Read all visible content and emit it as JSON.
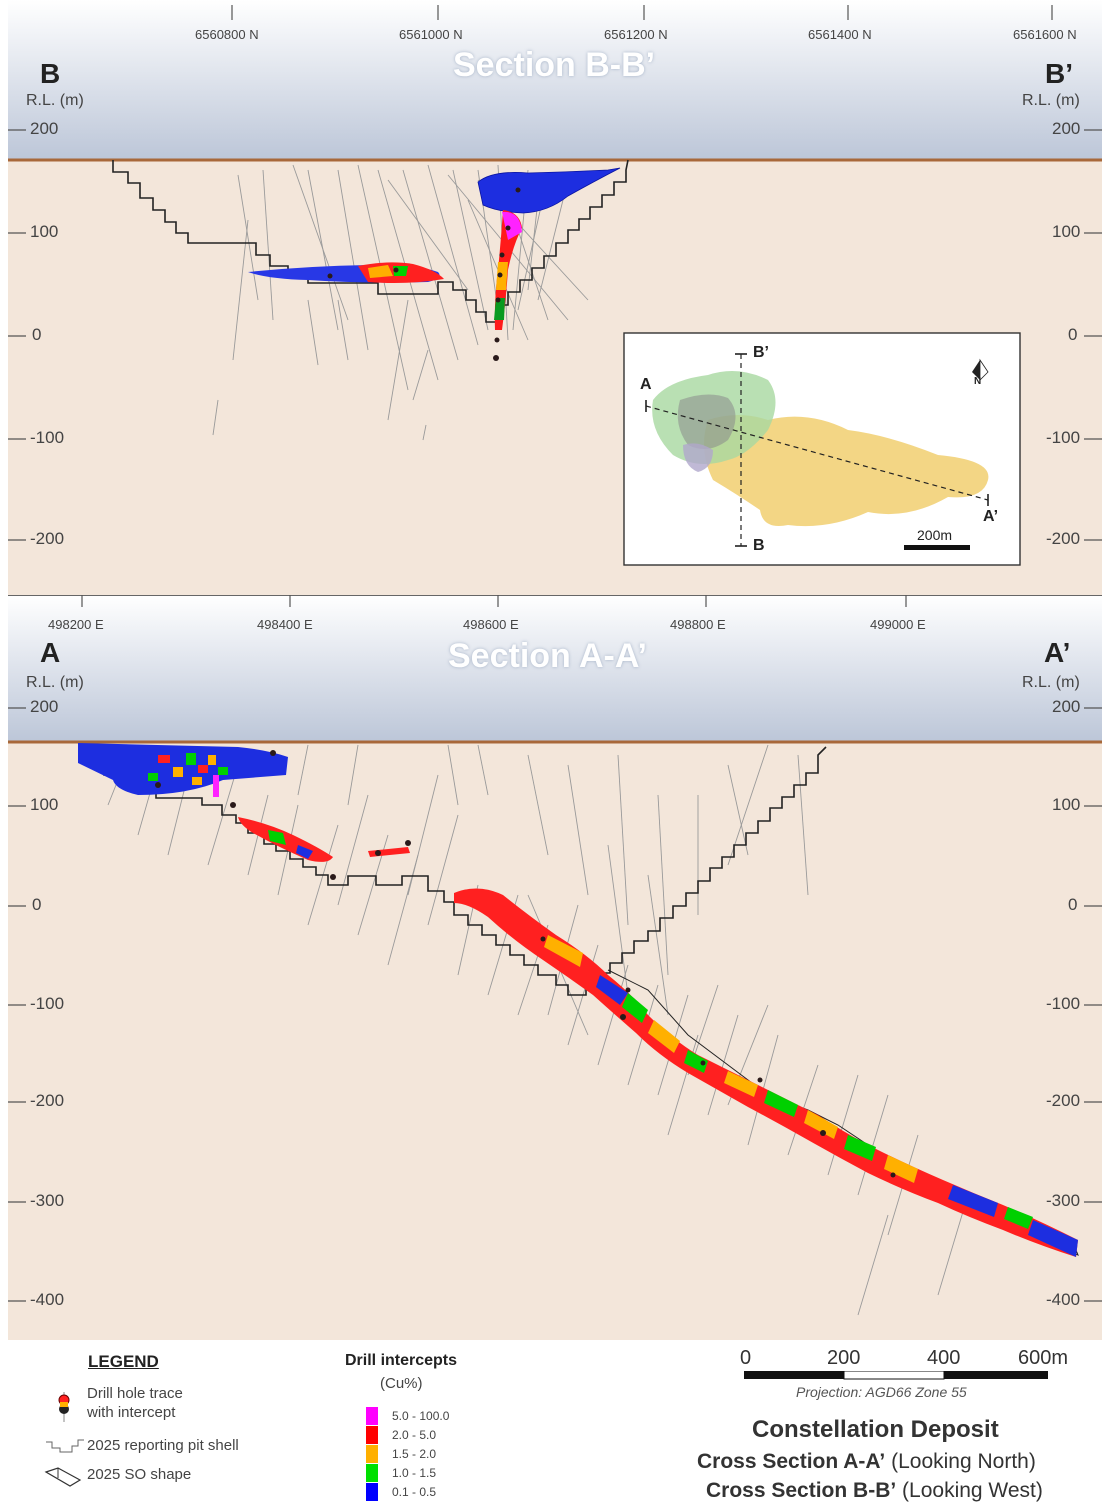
{
  "section_b": {
    "title": "Section B-B’",
    "left_letter": "B",
    "right_letter": "B’",
    "rl_label": "R.L. (m)",
    "top_ticks": [
      "6560800 N",
      "6561000 N",
      "6561200 N",
      "6561400 N",
      "6561600 N"
    ],
    "elevations": [
      "200",
      "100",
      "0",
      "-100",
      "-200"
    ]
  },
  "section_a": {
    "title": "Section A-A’",
    "left_letter": "A",
    "right_letter": "A’",
    "rl_label": "R.L. (m)",
    "top_ticks": [
      "498200 E",
      "498400 E",
      "498600 E",
      "498800 E",
      "499000 E"
    ],
    "elevations": [
      "200",
      "100",
      "0",
      "-100",
      "-200",
      "-300",
      "-400"
    ]
  },
  "inset": {
    "label_a": "A",
    "label_a_prime": "A’",
    "label_b": "B",
    "label_b_prime": "B’",
    "scale_label": "200m",
    "north_label": "N"
  },
  "legend": {
    "heading": "LEGEND",
    "drill_trace_line1": "Drill hole trace",
    "drill_trace_line2": "with intercept",
    "pit_shell": "2025 reporting pit shell",
    "so_shape": "2025 SO shape",
    "intercepts_title": "Drill intercepts",
    "intercepts_unit": "(Cu%)",
    "grades": [
      {
        "label": "5.0 - 100.0",
        "color": "#ff00ff"
      },
      {
        "label": "2.0 - 5.0",
        "color": "#ff0000"
      },
      {
        "label": "1.5 - 2.0",
        "color": "#ffb000"
      },
      {
        "label": "1.0 - 1.5",
        "color": "#00e000"
      },
      {
        "label": "0.1 - 0.5",
        "color": "#0000ff"
      }
    ]
  },
  "scale_bar": {
    "labels": [
      "0",
      "200",
      "400",
      "600m"
    ],
    "projection": "Projection: AGD66 Zone 55"
  },
  "title_block": {
    "deposit": "Constellation Deposit",
    "line_a_bold": "Cross Section A-A’",
    "line_a_rest": " (Looking North)",
    "line_b_bold": "Cross Section B-B’",
    "line_b_rest": " (Looking West)"
  }
}
